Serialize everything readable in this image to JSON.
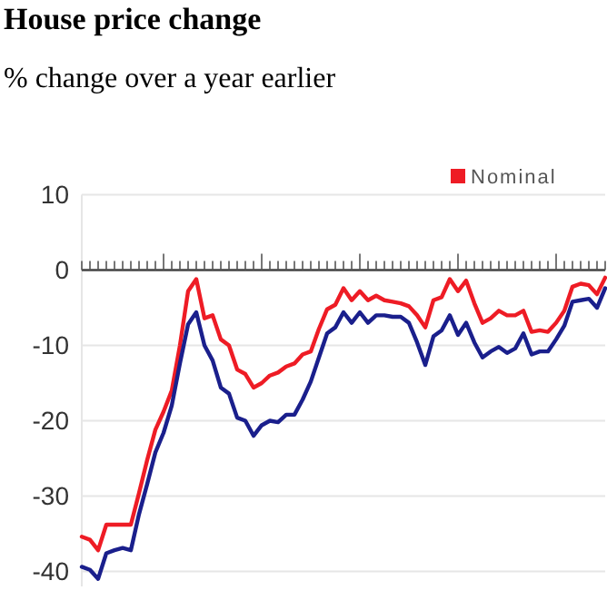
{
  "chart_data": {
    "type": "line",
    "title": "House price change",
    "subtitle": "% change over a year earlier",
    "categories": [
      null,
      null,
      null,
      null,
      null,
      null,
      null,
      null,
      null,
      null,
      null,
      null,
      null,
      null,
      null,
      null,
      null,
      null,
      null,
      null,
      null,
      null,
      null,
      null,
      null,
      null,
      null,
      null,
      null,
      null,
      null,
      null,
      null,
      null,
      null,
      null,
      null,
      null,
      null,
      null,
      null,
      null,
      null,
      null,
      null,
      null,
      null,
      null,
      null,
      null,
      null,
      null,
      null,
      null,
      null,
      null,
      null,
      null,
      null,
      null,
      null,
      null,
      null,
      null,
      null
    ],
    "series": [
      {
        "name": "Nominal",
        "color": "#ee1c25",
        "values": [
          -35.4,
          -35.8,
          -37.2,
          -33.8,
          -33.8,
          -33.8,
          -33.8,
          -29.6,
          -25.2,
          -21.2,
          -18.8,
          -16,
          -10,
          -2.8,
          -1.2,
          -6.4,
          -6,
          -9.2,
          -10,
          -13.2,
          -13.8,
          -15.6,
          -15,
          -14,
          -13.6,
          -12.8,
          -12.4,
          -11.2,
          -10.8,
          -7.8,
          -5.2,
          -4.6,
          -2.4,
          -4,
          -2.8,
          -4,
          -3.4,
          -4,
          -4.2,
          -4.4,
          -4.8,
          -6,
          -7.6,
          -4,
          -3.6,
          -1.2,
          -2.8,
          -1.4,
          -4.4,
          -7,
          -6.4,
          -5.4,
          -6,
          -6,
          -5.4,
          -8.2,
          -8,
          -8.2,
          -7,
          -5.4,
          -2.2,
          -1.8,
          -2,
          -3.2,
          -1
        ]
      },
      {
        "color": "#1a1f8c",
        "values": [
          -39.4,
          -39.8,
          -41,
          -37.6,
          -37.2,
          -36.9,
          -37.2,
          -32.4,
          -28.4,
          -24.2,
          -21.6,
          -18,
          -12.4,
          -7.2,
          -5.6,
          -10,
          -12,
          -15.6,
          -16.4,
          -19.6,
          -20,
          -22,
          -20.6,
          -20,
          -20.2,
          -19.2,
          -19.2,
          -17.2,
          -14.8,
          -11.6,
          -8.4,
          -7.6,
          -5.6,
          -7,
          -5.6,
          -7,
          -6,
          -6,
          -6.2,
          -6.2,
          -7,
          -9.6,
          -12.6,
          -8.8,
          -8,
          -6,
          -8.6,
          -7,
          -9.6,
          -11.6,
          -10.8,
          -10.2,
          -11,
          -10.4,
          -8.4,
          -11.2,
          -10.8,
          -10.8,
          -9.2,
          -7.4,
          -4.2,
          -4,
          -3.8,
          -5,
          -2.4
        ]
      }
    ],
    "ylim": [
      -42,
      10
    ],
    "yticks": [
      10,
      0,
      -10,
      -20,
      -30,
      -40
    ],
    "grid": "y",
    "legend": "top right",
    "line_style": "solid",
    "marker": "none"
  }
}
